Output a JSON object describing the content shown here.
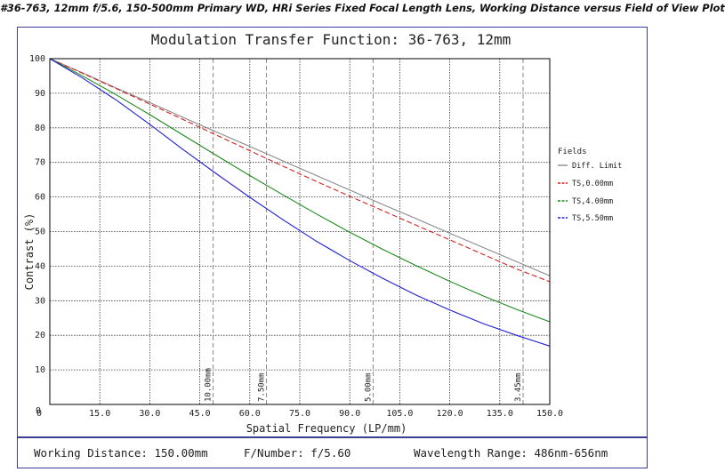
{
  "heading": "#36-763, 12mm f/5.6, 150-500mm Primary WD, HRi Series Fixed Focal Length Lens, Working Distance versus Field of View Plot",
  "footer": {
    "working_distance": "Working Distance: 150.00mm",
    "f_number": "F/Number: f/5.60",
    "wavelength_range": "Wavelength Range: 486nm-656nm"
  },
  "colors": {
    "frame": "#3b3e96",
    "diff_limit": "#8a8a8a",
    "ts_0": "#d62020",
    "ts_4": "#1a8a1a",
    "ts_5_5": "#2020d0"
  },
  "chart_data": {
    "type": "line",
    "title": "Modulation Transfer Function: 36-763, 12mm",
    "xlabel": "Spatial Frequency (LP/mm)",
    "ylabel": "Contrast (%)",
    "xlim": [
      0,
      150
    ],
    "ylim": [
      0,
      100
    ],
    "x_ticks": [
      "0",
      "15.0",
      "30.0",
      "45.0",
      "60.0",
      "75.0",
      "90.0",
      "105.0",
      "120.0",
      "135.0",
      "150.0"
    ],
    "y_ticks": [
      "0",
      "10",
      "20",
      "30",
      "40",
      "50",
      "60",
      "70",
      "80",
      "90",
      "100"
    ],
    "grid": true,
    "legend_title": "Fields",
    "legend_position": "right",
    "markers": [
      {
        "x": 49,
        "label": "10.00mm"
      },
      {
        "x": 65,
        "label": "7.50mm"
      },
      {
        "x": 97,
        "label": "5.00mm"
      },
      {
        "x": 142,
        "label": "3.45mm"
      }
    ],
    "x": [
      0,
      10,
      20,
      30,
      40,
      50,
      60,
      70,
      80,
      90,
      100,
      110,
      120,
      130,
      140,
      150
    ],
    "series": [
      {
        "name": "Diff. Limit",
        "color_key": "diff_limit",
        "dashed": false,
        "values": [
          100,
          95.8,
          91.5,
          87.3,
          83.0,
          78.8,
          74.6,
          70.4,
          66.2,
          62.0,
          57.8,
          53.7,
          49.5,
          45.4,
          41.3,
          37.2
        ]
      },
      {
        "name": "TS,0.00mm",
        "color_key": "ts_0",
        "dashed": true,
        "values": [
          100,
          95.7,
          91.3,
          86.9,
          82.4,
          77.9,
          73.4,
          68.9,
          64.5,
          60.2,
          56.0,
          51.8,
          47.6,
          43.4,
          39.2,
          35.5
        ]
      },
      {
        "name": "TS,4.00mm",
        "color_key": "ts_4",
        "dashed": true,
        "values": [
          100,
          94.9,
          89.5,
          83.8,
          77.9,
          72.0,
          66.2,
          60.6,
          55.1,
          49.8,
          44.8,
          40.1,
          35.6,
          31.4,
          27.5,
          23.9
        ]
      },
      {
        "name": "TS,5.50mm",
        "color_key": "ts_5_5",
        "dashed": true,
        "values": [
          100,
          94.3,
          88.0,
          81.0,
          73.7,
          66.7,
          59.9,
          53.4,
          47.2,
          41.6,
          36.4,
          31.6,
          27.3,
          23.4,
          20.0,
          16.9
        ]
      }
    ]
  }
}
